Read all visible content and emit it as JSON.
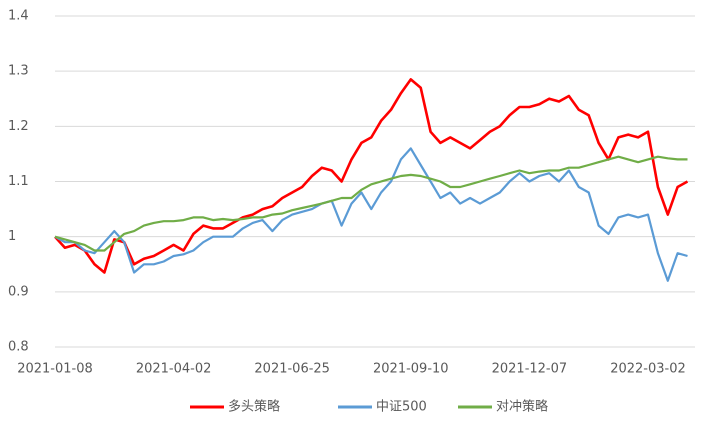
{
  "chart_data": {
    "type": "line",
    "categories": [
      "2021-01-08",
      null,
      null,
      null,
      null,
      null,
      null,
      null,
      null,
      null,
      null,
      null,
      "2021-04-02",
      null,
      null,
      null,
      null,
      null,
      null,
      null,
      null,
      null,
      null,
      null,
      "2021-06-25",
      null,
      null,
      null,
      null,
      null,
      null,
      null,
      null,
      null,
      null,
      null,
      "2021-09-10",
      null,
      null,
      null,
      null,
      null,
      null,
      null,
      null,
      null,
      null,
      null,
      "2021-12-07",
      null,
      null,
      null,
      null,
      null,
      null,
      null,
      null,
      null,
      null,
      null,
      "2022-03-02",
      null,
      null,
      null,
      null
    ],
    "series": [
      {
        "name": "多头策略",
        "color": "#ff0000",
        "values": [
          1.0,
          0.98,
          0.985,
          0.975,
          0.95,
          0.935,
          0.995,
          0.99,
          0.95,
          0.96,
          0.965,
          0.975,
          0.985,
          0.975,
          1.005,
          1.02,
          1.015,
          1.015,
          1.025,
          1.035,
          1.04,
          1.05,
          1.055,
          1.07,
          1.08,
          1.09,
          1.11,
          1.125,
          1.12,
          1.1,
          1.14,
          1.17,
          1.18,
          1.21,
          1.23,
          1.26,
          1.285,
          1.27,
          1.19,
          1.17,
          1.18,
          1.17,
          1.16,
          1.175,
          1.19,
          1.2,
          1.22,
          1.235,
          1.235,
          1.24,
          1.25,
          1.245,
          1.255,
          1.23,
          1.22,
          1.17,
          1.14,
          1.18,
          1.185,
          1.18,
          1.19,
          1.09,
          1.04,
          1.09,
          1.1
        ]
      },
      {
        "name": "中证500",
        "color": "#5b9bd5",
        "values": [
          1.0,
          0.99,
          0.99,
          0.975,
          0.97,
          0.99,
          1.01,
          0.99,
          0.935,
          0.95,
          0.95,
          0.955,
          0.965,
          0.968,
          0.975,
          0.99,
          1.0,
          1.0,
          1.0,
          1.015,
          1.025,
          1.03,
          1.01,
          1.03,
          1.04,
          1.045,
          1.05,
          1.06,
          1.065,
          1.02,
          1.06,
          1.08,
          1.05,
          1.08,
          1.1,
          1.14,
          1.16,
          1.13,
          1.1,
          1.07,
          1.08,
          1.06,
          1.07,
          1.06,
          1.07,
          1.08,
          1.1,
          1.115,
          1.1,
          1.11,
          1.115,
          1.1,
          1.12,
          1.09,
          1.08,
          1.02,
          1.005,
          1.035,
          1.04,
          1.035,
          1.04,
          0.97,
          0.92,
          0.97,
          0.965
        ]
      },
      {
        "name": "对冲策略",
        "color": "#70ad47",
        "values": [
          1.0,
          0.995,
          0.99,
          0.985,
          0.975,
          0.975,
          0.99,
          1.005,
          1.01,
          1.02,
          1.025,
          1.028,
          1.028,
          1.03,
          1.035,
          1.035,
          1.03,
          1.032,
          1.03,
          1.032,
          1.035,
          1.035,
          1.04,
          1.042,
          1.048,
          1.052,
          1.056,
          1.06,
          1.065,
          1.07,
          1.07,
          1.085,
          1.095,
          1.1,
          1.105,
          1.11,
          1.112,
          1.11,
          1.105,
          1.1,
          1.09,
          1.09,
          1.095,
          1.1,
          1.105,
          1.11,
          1.115,
          1.12,
          1.115,
          1.118,
          1.12,
          1.12,
          1.125,
          1.125,
          1.13,
          1.135,
          1.14,
          1.145,
          1.14,
          1.135,
          1.14,
          1.145,
          1.142,
          1.14,
          1.14
        ]
      }
    ],
    "ylim": [
      0.8,
      1.4
    ],
    "yticks": [
      0.8,
      0.9,
      1,
      1.1,
      1.2,
      1.3,
      1.4
    ],
    "grid": true,
    "legend": "bottom"
  }
}
